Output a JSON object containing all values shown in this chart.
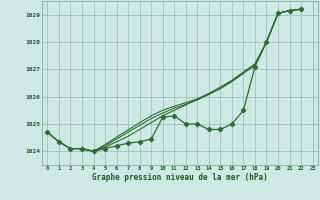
{
  "xlabel": "Graphe pression niveau de la mer (hPa)",
  "background_color": "#cde8e5",
  "plot_bg_color": "#cde8e5",
  "grid_color": "#88b8a8",
  "text_color": "#1a5c1a",
  "xlim": [
    -0.5,
    23.5
  ],
  "ylim": [
    1023.5,
    1029.5
  ],
  "yticks": [
    1024,
    1025,
    1026,
    1027,
    1028,
    1029
  ],
  "xticks": [
    0,
    1,
    2,
    3,
    4,
    5,
    6,
    7,
    8,
    9,
    10,
    11,
    12,
    13,
    14,
    15,
    16,
    17,
    18,
    19,
    20,
    21,
    22,
    23
  ],
  "line_color": "#2d6e2d",
  "series_main": [
    1024.7,
    1024.35,
    1024.1,
    1024.1,
    1024.0,
    1024.1,
    1024.2,
    1024.3,
    1024.35,
    1024.45,
    1025.25,
    1025.3,
    1025.0,
    1025.0,
    1024.8,
    1024.8,
    1025.0,
    1025.5,
    1027.1,
    1028.0,
    1029.05,
    1029.15,
    1029.2
  ],
  "series_trend1": [
    1024.7,
    1024.35,
    1024.1,
    1024.1,
    1024.0,
    1024.15,
    1024.35,
    1024.55,
    1024.8,
    1025.05,
    1025.3,
    1025.5,
    1025.7,
    1025.9,
    1026.1,
    1026.3,
    1026.55,
    1026.85,
    1027.15,
    1028.0,
    1029.05,
    1029.15,
    1029.2
  ],
  "series_trend2": [
    1024.7,
    1024.35,
    1024.1,
    1024.1,
    1024.0,
    1024.2,
    1024.45,
    1024.7,
    1024.95,
    1025.2,
    1025.4,
    1025.58,
    1025.72,
    1025.88,
    1026.08,
    1026.3,
    1026.58,
    1026.88,
    1027.18,
    1028.0,
    1029.05,
    1029.15,
    1029.2
  ],
  "series_trend3": [
    1024.7,
    1024.35,
    1024.1,
    1024.1,
    1024.0,
    1024.25,
    1024.52,
    1024.78,
    1025.05,
    1025.3,
    1025.5,
    1025.65,
    1025.78,
    1025.92,
    1026.12,
    1026.35,
    1026.6,
    1026.9,
    1027.2,
    1028.0,
    1029.05,
    1029.15,
    1029.2
  ]
}
